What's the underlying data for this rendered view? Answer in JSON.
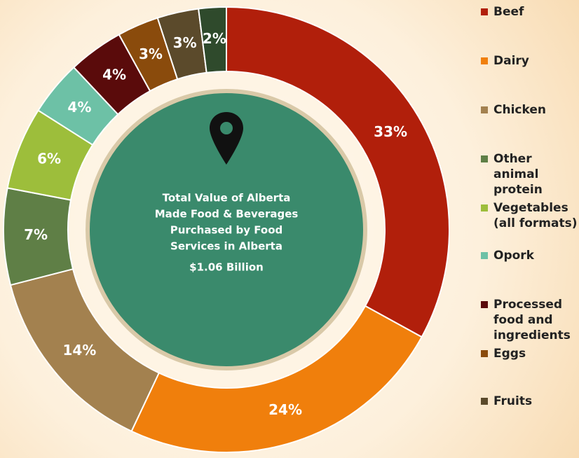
{
  "chart_data": {
    "type": "donut",
    "categories": [
      "Beef",
      "Dairy",
      "Chicken",
      "Other animal protein",
      "Vegetables (all formats)",
      "Opork",
      "Processed food and ingredients",
      "Eggs",
      "Fruits",
      null
    ],
    "values": [
      33,
      24,
      14,
      7,
      6,
      4,
      4,
      3,
      3,
      2
    ],
    "value_labels": [
      "33%",
      "24%",
      "14%",
      "7%",
      "6%",
      "4%",
      "4%",
      "3%",
      "3%",
      "2%"
    ],
    "colors": [
      "#b11f0b",
      "#f07f0c",
      "#a3814f",
      "#5f7f46",
      "#9dbe3b",
      "#6dc1a6",
      "#5a0b0b",
      "#8a4b0c",
      "#5b4a2b",
      "#2f4a2c"
    ],
    "center_label": [
      "Total Value of Alberta",
      "Made Food & Beverages",
      "Purchased by Food",
      "Services in Alberta"
    ],
    "center_value": "$1.06 Billion"
  }
}
